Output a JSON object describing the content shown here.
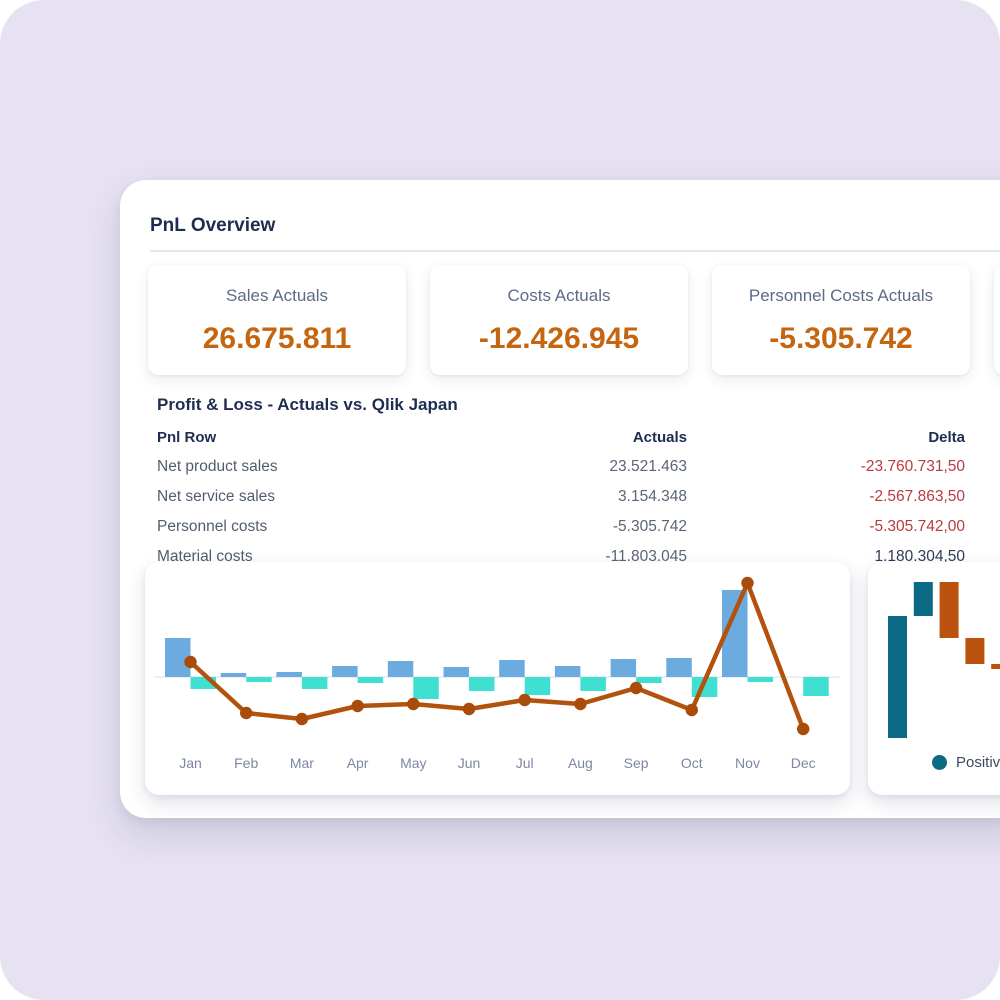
{
  "window": {
    "title": "PnL Overview"
  },
  "colors": {
    "background": "#e6e2f1",
    "kpi_value": "#c4660f",
    "delta_negative": "#b93b3d",
    "delta_positive": "#2f3c55",
    "divider": "#e3e7f0"
  },
  "kpis": [
    {
      "label": "Sales Actuals",
      "value": "26.675.811"
    },
    {
      "label": "Costs Actuals",
      "value": "-12.426.945"
    },
    {
      "label": "Personnel Costs Actuals",
      "value": "-5.305.742"
    },
    {
      "label": "",
      "value": ""
    }
  ],
  "table": {
    "title": "Profit & Loss - Actuals vs. Qlik Japan",
    "columns": [
      "Pnl Row",
      "Actuals",
      "Delta"
    ],
    "rows": [
      {
        "label": "Net product sales",
        "actuals": "23.521.463",
        "delta": "-23.760.731,50",
        "delta_negative": true
      },
      {
        "label": "Net service sales",
        "actuals": "3.154.348",
        "delta": "-2.567.863,50",
        "delta_negative": true
      },
      {
        "label": "Personnel costs",
        "actuals": "-5.305.742",
        "delta": "-5.305.742,00",
        "delta_negative": true
      },
      {
        "label": "Material costs",
        "actuals": "-11.803.045",
        "delta": "1.180.304,50",
        "delta_negative": false
      }
    ]
  },
  "chart_data": [
    {
      "type": "bar",
      "subtype": "combo-bar-line-by-month",
      "title": "",
      "categories": [
        "Jan",
        "Feb",
        "Mar",
        "Apr",
        "May",
        "Jun",
        "Jul",
        "Aug",
        "Sep",
        "Oct",
        "Nov",
        "Dec"
      ],
      "series": [
        {
          "name": "positive-bars",
          "type": "bar",
          "color": "#6babdf",
          "values": [
            39,
            4,
            5,
            11,
            16,
            10,
            17,
            11,
            18,
            19,
            87,
            0
          ]
        },
        {
          "name": "negative-bars",
          "type": "bar",
          "color": "#3fe0d1",
          "values": [
            -12,
            -5,
            -12,
            -6,
            -22,
            -14,
            -18,
            -14,
            -6,
            -20,
            -5,
            -19
          ]
        },
        {
          "name": "trend-line",
          "type": "line",
          "color": "#b2520c",
          "marker_color": "#a84b0b",
          "values": [
            15,
            -36,
            -42,
            -29,
            -27,
            -32,
            -23,
            -27,
            -11,
            -33,
            94,
            -52
          ]
        }
      ],
      "units": "relative (no value axis shown)",
      "grid": false,
      "axis_label_color": "#7d87a2"
    },
    {
      "type": "bar",
      "subtype": "waterfall",
      "title": "",
      "steps": [
        {
          "change": 122
        },
        {
          "change": 34
        },
        {
          "change": -56
        },
        {
          "change": -26
        },
        {
          "change": -5
        }
      ],
      "colors": {
        "positive": "#0d6a84",
        "negative": "#bb530e"
      },
      "legend": [
        {
          "label": "Positiv",
          "color": "#0d6a84"
        }
      ],
      "legend_position": "bottom-right",
      "units": "relative (no value axis shown)"
    }
  ]
}
